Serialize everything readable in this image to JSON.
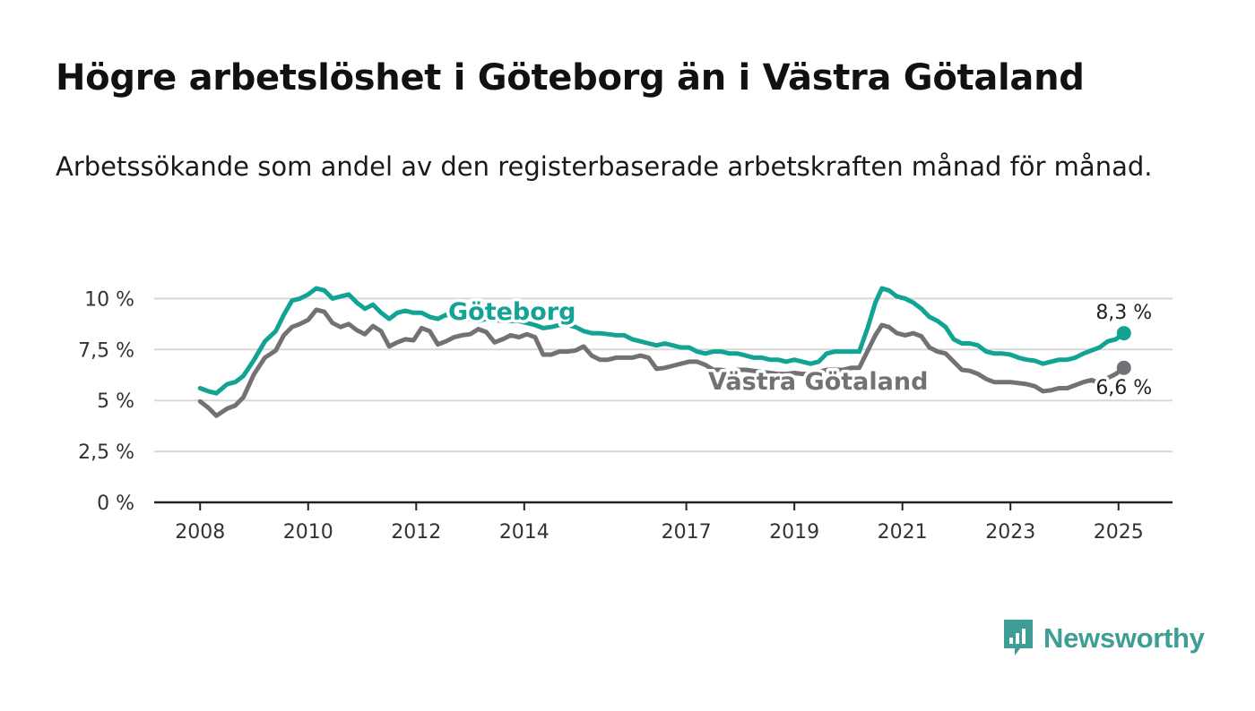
{
  "title": "Högre arbetslöshet i Göteborg än i Västra Götaland",
  "subtitle": "Arbetssökande som andel av den registerbaserade arbetskraften månad för månad.",
  "colors": {
    "goteborg": "#12a394",
    "vastra": "#727276",
    "axis": "#222222",
    "grid": "#d8d8d8",
    "brand": "#3e9e96"
  },
  "brand": {
    "name": "Newsworthy",
    "icon": "bar-chart-speech-icon"
  },
  "chart_data": {
    "type": "line",
    "title": "",
    "xlabel": "",
    "ylabel": "",
    "ylim": [
      0,
      10.5
    ],
    "xlim": [
      2007.15,
      2026.0
    ],
    "grid": true,
    "y_ticks": [
      {
        "value": 0,
        "label": "0 %"
      },
      {
        "value": 2.5,
        "label": "2,5 %"
      },
      {
        "value": 5,
        "label": "5 %"
      },
      {
        "value": 7.5,
        "label": "7,5 %"
      },
      {
        "value": 10,
        "label": "10 %"
      }
    ],
    "x_ticks": [
      {
        "value": 2008,
        "label": "2008"
      },
      {
        "value": 2010,
        "label": "2010"
      },
      {
        "value": 2012,
        "label": "2012"
      },
      {
        "value": 2014,
        "label": "2014"
      },
      {
        "value": 2017,
        "label": "2017"
      },
      {
        "value": 2019,
        "label": "2019"
      },
      {
        "value": 2021,
        "label": "2021"
      },
      {
        "value": 2023,
        "label": "2023"
      },
      {
        "value": 2025,
        "label": "2025"
      }
    ],
    "series": [
      {
        "name": "Göteborg",
        "end_label": "8,3 %",
        "x": [
          2008.0,
          2008.15,
          2008.3,
          2008.5,
          2008.65,
          2008.8,
          2009.0,
          2009.2,
          2009.4,
          2009.55,
          2009.7,
          2009.85,
          2010.0,
          2010.15,
          2010.3,
          2010.45,
          2010.6,
          2010.75,
          2010.9,
          2011.05,
          2011.2,
          2011.35,
          2011.5,
          2011.65,
          2011.8,
          2011.95,
          2012.1,
          2012.25,
          2012.4,
          2012.55,
          2012.7,
          2012.85,
          2013.0,
          2013.15,
          2013.3,
          2013.45,
          2013.6,
          2013.75,
          2013.9,
          2014.05,
          2014.2,
          2014.35,
          2014.5,
          2014.65,
          2014.8,
          2014.95,
          2015.1,
          2015.25,
          2015.4,
          2015.55,
          2015.7,
          2015.85,
          2016.0,
          2016.15,
          2016.3,
          2016.45,
          2016.6,
          2016.75,
          2016.9,
          2017.05,
          2017.2,
          2017.35,
          2017.5,
          2017.65,
          2017.8,
          2017.95,
          2018.1,
          2018.25,
          2018.4,
          2018.55,
          2018.7,
          2018.85,
          2019.0,
          2019.15,
          2019.3,
          2019.45,
          2019.6,
          2019.75,
          2019.9,
          2020.05,
          2020.2,
          2020.35,
          2020.5,
          2020.62,
          2020.75,
          2020.9,
          2021.05,
          2021.2,
          2021.35,
          2021.5,
          2021.65,
          2021.8,
          2021.95,
          2022.1,
          2022.25,
          2022.4,
          2022.55,
          2022.7,
          2022.85,
          2023.0,
          2023.15,
          2023.3,
          2023.45,
          2023.6,
          2023.75,
          2023.9,
          2024.05,
          2024.2,
          2024.35,
          2024.5,
          2024.65,
          2024.8,
          2024.95,
          2025.1
        ],
        "y": [
          5.6,
          5.45,
          5.35,
          5.8,
          5.9,
          6.2,
          7.0,
          7.9,
          8.4,
          9.2,
          9.9,
          10.0,
          10.2,
          10.5,
          10.4,
          10.0,
          10.1,
          10.2,
          9.8,
          9.5,
          9.7,
          9.3,
          9.0,
          9.3,
          9.4,
          9.3,
          9.3,
          9.1,
          9.0,
          9.2,
          9.1,
          9.0,
          9.0,
          8.9,
          9.0,
          8.95,
          8.9,
          8.9,
          8.9,
          8.8,
          8.7,
          8.55,
          8.6,
          8.7,
          8.7,
          8.6,
          8.4,
          8.3,
          8.3,
          8.25,
          8.2,
          8.2,
          8.0,
          7.9,
          7.8,
          7.7,
          7.8,
          7.7,
          7.6,
          7.6,
          7.4,
          7.3,
          7.4,
          7.4,
          7.3,
          7.3,
          7.2,
          7.1,
          7.1,
          7.0,
          7.0,
          6.9,
          7.0,
          6.9,
          6.8,
          6.9,
          7.3,
          7.4,
          7.4,
          7.4,
          7.4,
          8.5,
          9.8,
          10.5,
          10.4,
          10.1,
          10.0,
          9.8,
          9.5,
          9.1,
          8.9,
          8.6,
          8.0,
          7.8,
          7.8,
          7.7,
          7.4,
          7.3,
          7.3,
          7.25,
          7.1,
          7.0,
          6.95,
          6.8,
          6.9,
          7.0,
          7.0,
          7.1,
          7.3,
          7.45,
          7.6,
          7.9,
          8.0,
          8.3
        ]
      },
      {
        "name": "Västra Götaland",
        "end_label": "6,6 %",
        "x": [
          2008.0,
          2008.15,
          2008.3,
          2008.5,
          2008.65,
          2008.8,
          2009.0,
          2009.2,
          2009.4,
          2009.55,
          2009.7,
          2009.85,
          2010.0,
          2010.15,
          2010.3,
          2010.45,
          2010.6,
          2010.75,
          2010.9,
          2011.05,
          2011.2,
          2011.35,
          2011.5,
          2011.65,
          2011.8,
          2011.95,
          2012.1,
          2012.25,
          2012.4,
          2012.55,
          2012.7,
          2012.85,
          2013.0,
          2013.15,
          2013.3,
          2013.45,
          2013.6,
          2013.75,
          2013.9,
          2014.05,
          2014.2,
          2014.35,
          2014.5,
          2014.65,
          2014.8,
          2014.95,
          2015.1,
          2015.25,
          2015.4,
          2015.55,
          2015.7,
          2015.85,
          2016.0,
          2016.15,
          2016.3,
          2016.45,
          2016.6,
          2016.75,
          2016.9,
          2017.05,
          2017.2,
          2017.35,
          2017.5,
          2017.65,
          2017.8,
          2017.95,
          2018.1,
          2018.25,
          2018.4,
          2018.55,
          2018.7,
          2018.85,
          2019.0,
          2019.15,
          2019.3,
          2019.45,
          2019.6,
          2019.75,
          2019.9,
          2020.05,
          2020.2,
          2020.35,
          2020.5,
          2020.62,
          2020.75,
          2020.9,
          2021.05,
          2021.2,
          2021.35,
          2021.5,
          2021.65,
          2021.8,
          2021.95,
          2022.1,
          2022.25,
          2022.4,
          2022.55,
          2022.7,
          2022.85,
          2023.0,
          2023.15,
          2023.3,
          2023.45,
          2023.6,
          2023.75,
          2023.9,
          2024.05,
          2024.2,
          2024.35,
          2024.5,
          2024.65,
          2024.8,
          2024.95,
          2025.1
        ],
        "y": [
          4.95,
          4.65,
          4.25,
          4.6,
          4.75,
          5.15,
          6.3,
          7.1,
          7.45,
          8.2,
          8.6,
          8.75,
          8.95,
          9.45,
          9.35,
          8.8,
          8.6,
          8.75,
          8.45,
          8.25,
          8.65,
          8.4,
          7.65,
          7.85,
          8.0,
          7.95,
          8.55,
          8.4,
          7.75,
          7.9,
          8.1,
          8.2,
          8.25,
          8.5,
          8.35,
          7.85,
          8.0,
          8.2,
          8.1,
          8.25,
          8.1,
          7.25,
          7.25,
          7.4,
          7.4,
          7.45,
          7.65,
          7.2,
          7.0,
          7.0,
          7.1,
          7.1,
          7.1,
          7.2,
          7.1,
          6.55,
          6.6,
          6.7,
          6.8,
          6.9,
          6.9,
          6.75,
          6.5,
          6.5,
          6.4,
          6.5,
          6.5,
          6.45,
          6.4,
          6.35,
          6.3,
          6.3,
          6.35,
          6.3,
          6.3,
          6.4,
          6.5,
          6.5,
          6.5,
          6.6,
          6.6,
          7.4,
          8.2,
          8.7,
          8.6,
          8.3,
          8.2,
          8.3,
          8.15,
          7.6,
          7.4,
          7.3,
          6.9,
          6.5,
          6.45,
          6.3,
          6.05,
          5.9,
          5.9,
          5.9,
          5.85,
          5.8,
          5.7,
          5.45,
          5.5,
          5.6,
          5.6,
          5.75,
          5.9,
          6.0,
          5.85,
          6.1,
          6.3,
          6.6
        ]
      }
    ],
    "legend": "inline"
  }
}
